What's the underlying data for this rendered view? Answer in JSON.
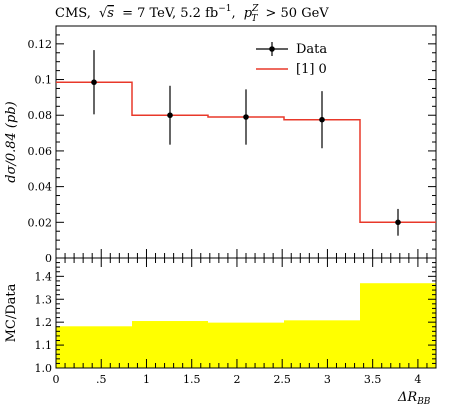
{
  "title": {
    "prefix": "CMS,",
    "sqrt": "√",
    "s_var": "s",
    "energy": "= 7 TeV, 5.2 fb",
    "lumi_exp": "−1",
    "sep": ",",
    "p_var": "p",
    "p_sup": "Z",
    "p_sub": "T",
    "cut": "> 50 GeV"
  },
  "chart_data": [
    {
      "type": "line",
      "role": "main",
      "ylabel": "dσ/0.84 (pb)",
      "ylim": [
        0,
        0.13
      ],
      "xlim": [
        0,
        4.2
      ],
      "yticks": [
        0,
        0.02,
        0.04,
        0.06,
        0.08,
        0.1,
        0.12
      ],
      "ytick_labels": [
        "0",
        "0.02",
        "0.04",
        "0.06",
        "0.08",
        "0.1",
        "0.12"
      ],
      "legend_position": "top-right",
      "series": [
        {
          "name": "Data",
          "kind": "points_with_errors",
          "color": "#000000",
          "x": [
            0.42,
            1.26,
            2.1,
            2.94,
            3.78
          ],
          "y": [
            0.0985,
            0.08,
            0.079,
            0.0775,
            0.02
          ],
          "yerr": [
            0.018,
            0.0165,
            0.0155,
            0.016,
            0.0075
          ]
        },
        {
          "name": "[1] 0",
          "kind": "histogram",
          "color": "#e8382a",
          "bin_edges": [
            0,
            0.84,
            1.68,
            2.52,
            3.36,
            4.2
          ],
          "values": [
            0.0985,
            0.08,
            0.079,
            0.0775,
            0.02
          ]
        }
      ]
    },
    {
      "type": "area",
      "role": "ratio",
      "ylabel": "MC/Data",
      "xlabel_main": "ΔR",
      "xlabel_sub": "BB",
      "ylim": [
        1.0,
        1.48
      ],
      "xlim": [
        0,
        4.2
      ],
      "yticks": [
        1.0,
        1.1,
        1.2,
        1.3,
        1.4
      ],
      "ytick_labels": [
        "1.0",
        "1.1",
        "1.2",
        "1.3",
        "1.4"
      ],
      "xticks": [
        0,
        0.5,
        1,
        1.5,
        2,
        2.5,
        3,
        3.5,
        4
      ],
      "xtick_labels": [
        "0",
        ".5",
        "1",
        "1.5",
        "2",
        "2.5",
        "3",
        "3.5",
        "4"
      ],
      "fill_color": "#ffff00",
      "bin_edges": [
        0,
        0.84,
        1.68,
        2.52,
        3.36,
        4.2
      ],
      "values": [
        1.182,
        1.205,
        1.198,
        1.208,
        1.37
      ]
    }
  ]
}
